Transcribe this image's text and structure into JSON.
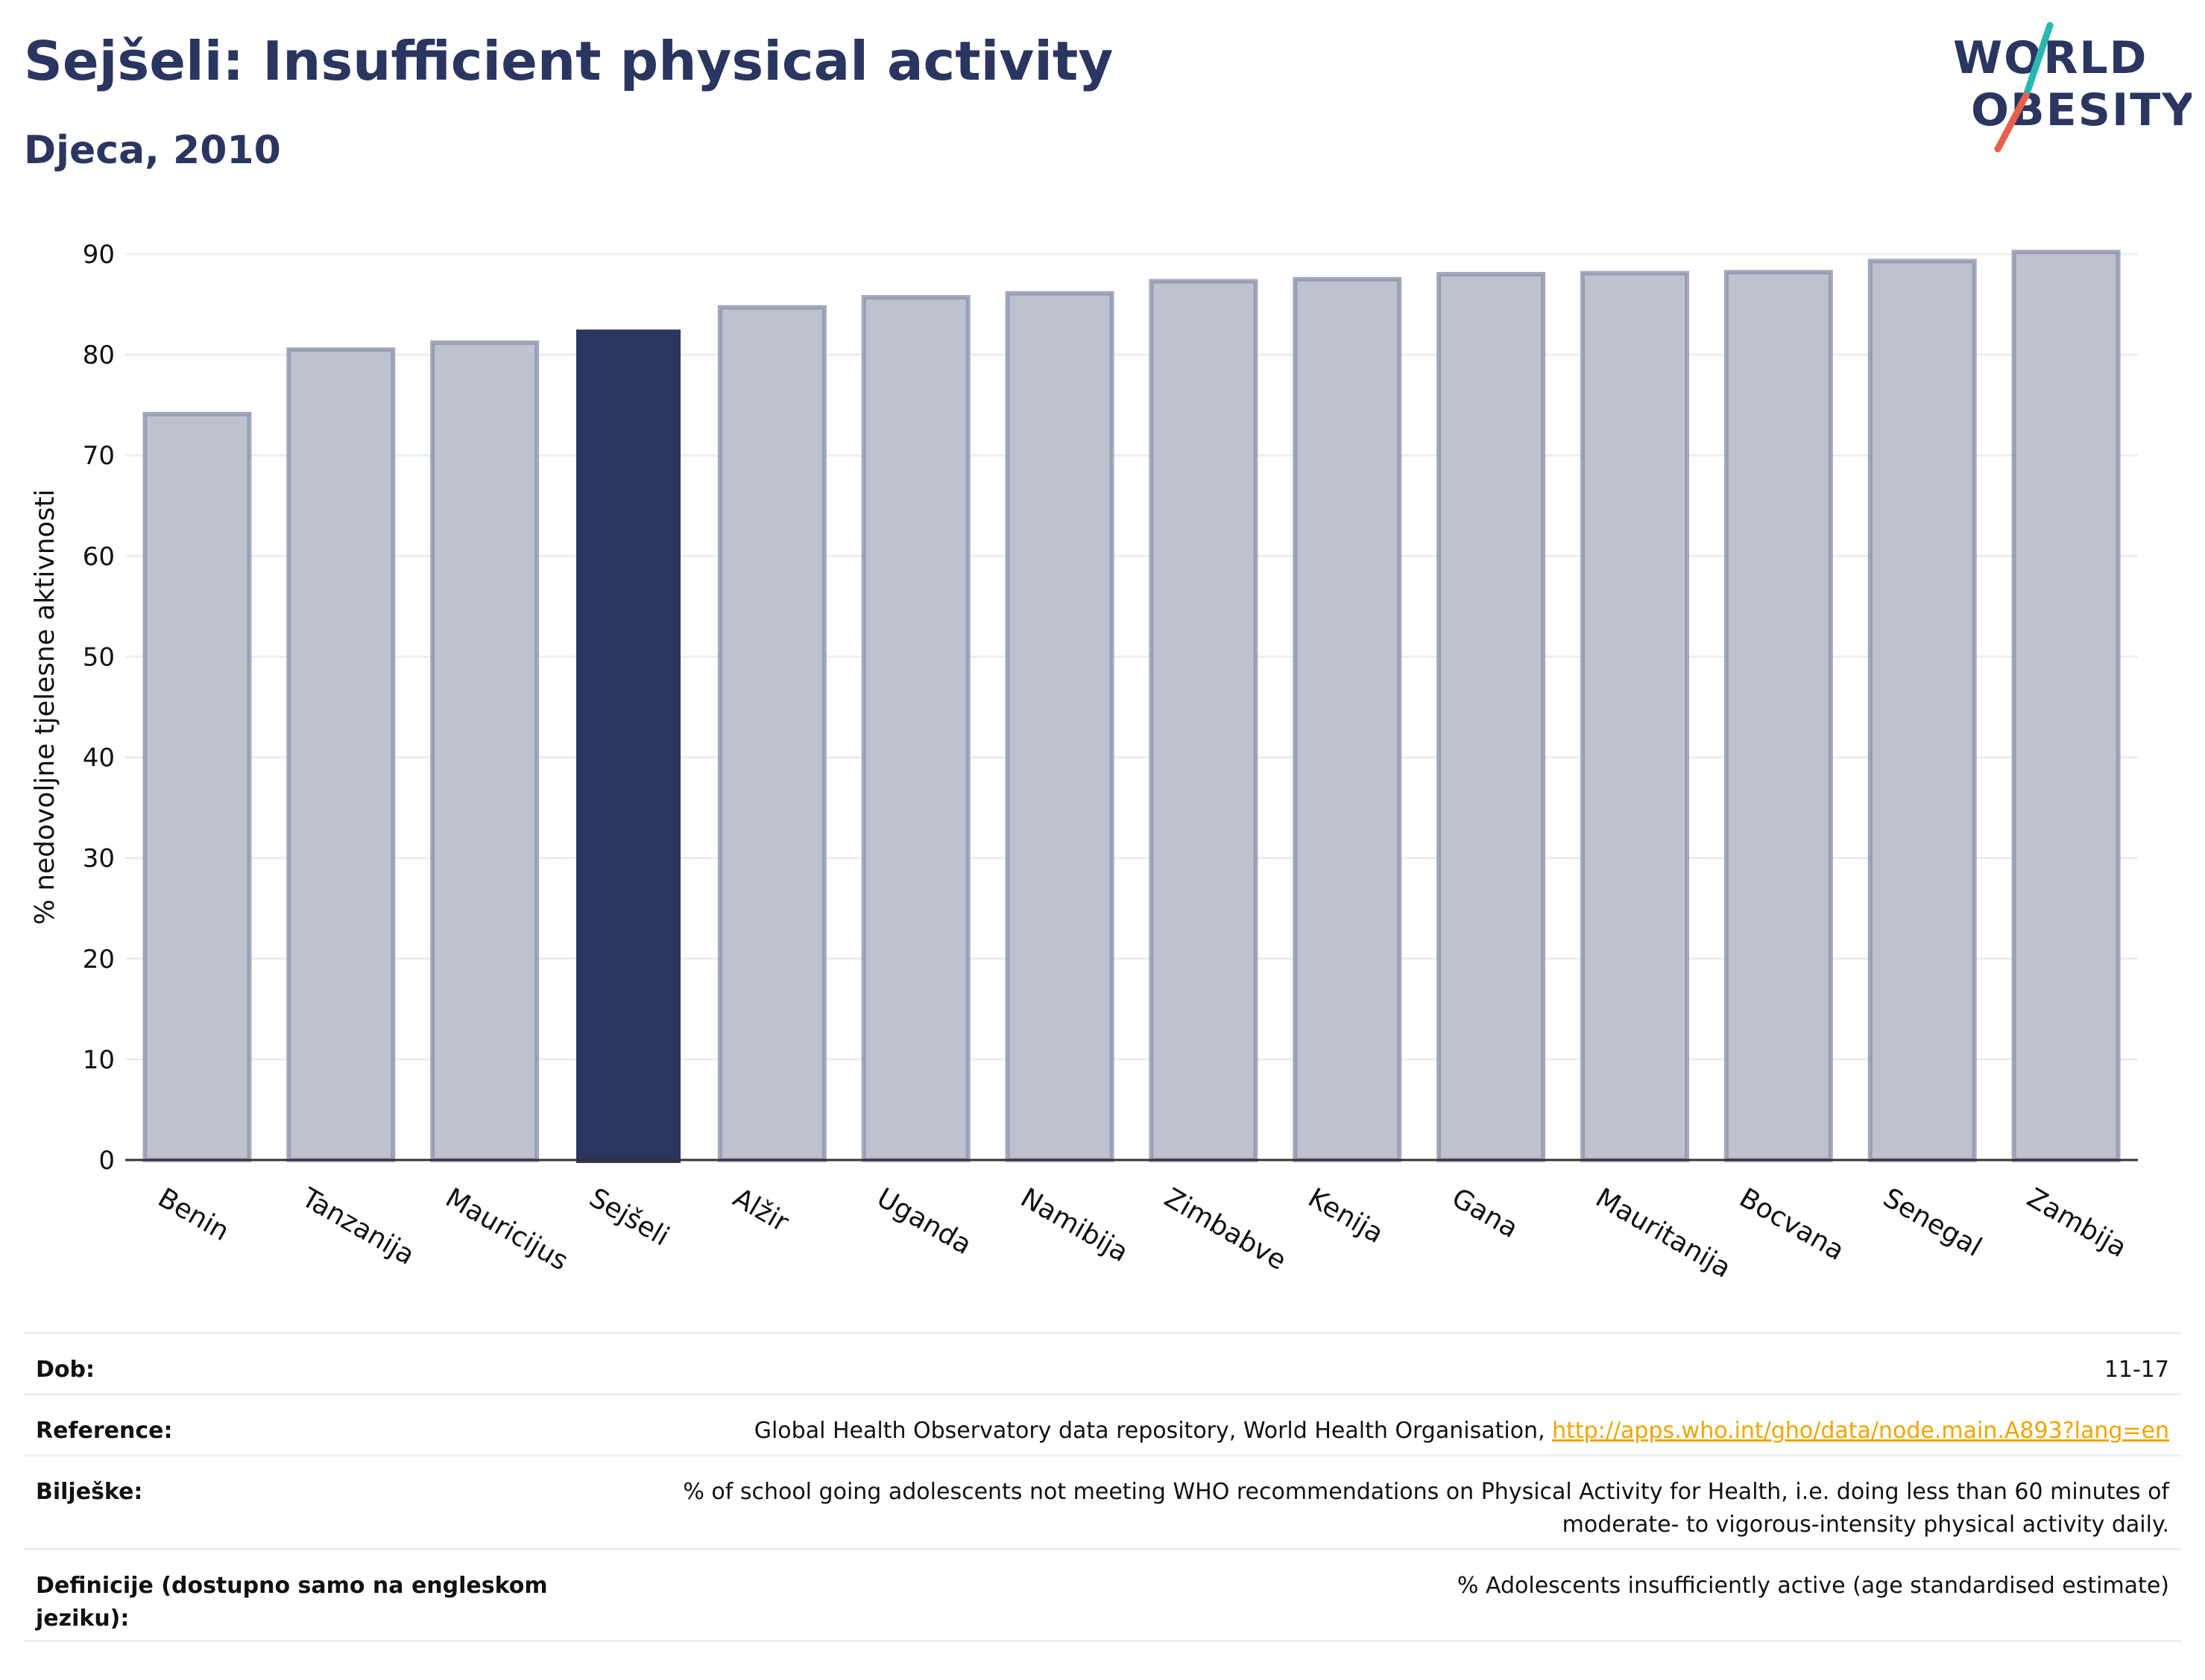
{
  "header": {
    "title": "Sejšeli: Insufficient physical activity",
    "subtitle": "Djeca, 2010"
  },
  "logo": {
    "line1": "WORLD",
    "line2": "OBESITY"
  },
  "colors": {
    "highlight_bar": "#2a3560",
    "other_bar": "#bec2cf",
    "other_bar_stroke": "#8d93ad",
    "grid": "#eceef4",
    "axis": "#333333",
    "title": "#2a3560",
    "link": "#f0a500",
    "logo_slash_top": "#2ab7b0",
    "logo_slash_bottom": "#e8604c"
  },
  "chart_data": {
    "type": "bar",
    "ylabel": "% nedovoljne tjelesne aktivnosti",
    "ylim": [
      0,
      90
    ],
    "yticks": [
      0,
      10,
      20,
      30,
      40,
      50,
      60,
      70,
      80,
      90
    ],
    "grid": true,
    "highlight": "Sejšeli",
    "categories": [
      "Benin",
      "Tanzanija",
      "Mauricijus",
      "Sejšeli",
      "Alžir",
      "Uganda",
      "Namibija",
      "Zimbabve",
      "Kenija",
      "Gana",
      "Mauritanija",
      "Bocvana",
      "Senegal",
      "Zambija"
    ],
    "values": [
      74.1,
      80.5,
      81.2,
      82.5,
      84.7,
      85.7,
      86.1,
      87.3,
      87.5,
      88.0,
      88.1,
      88.2,
      89.3,
      90.2
    ]
  },
  "info": {
    "rows": [
      {
        "label": "Dob:",
        "value": "11-17"
      },
      {
        "label": "Reference:",
        "value": "Global Health Observatory data repository, World Health Organisation, ",
        "link": "http://apps.who.int/gho/data/node.main.A893?lang=en"
      },
      {
        "label": "Bilješke:",
        "value": "% of school going adolescents not meeting WHO recommendations on Physical Activity for Health, i.e. doing less than 60 minutes of moderate- to vigorous-intensity physical activity daily."
      },
      {
        "label": "Definicije (dostupno samo na engleskom jeziku):",
        "value": "% Adolescents insufficiently active (age standardised estimate)"
      }
    ]
  }
}
